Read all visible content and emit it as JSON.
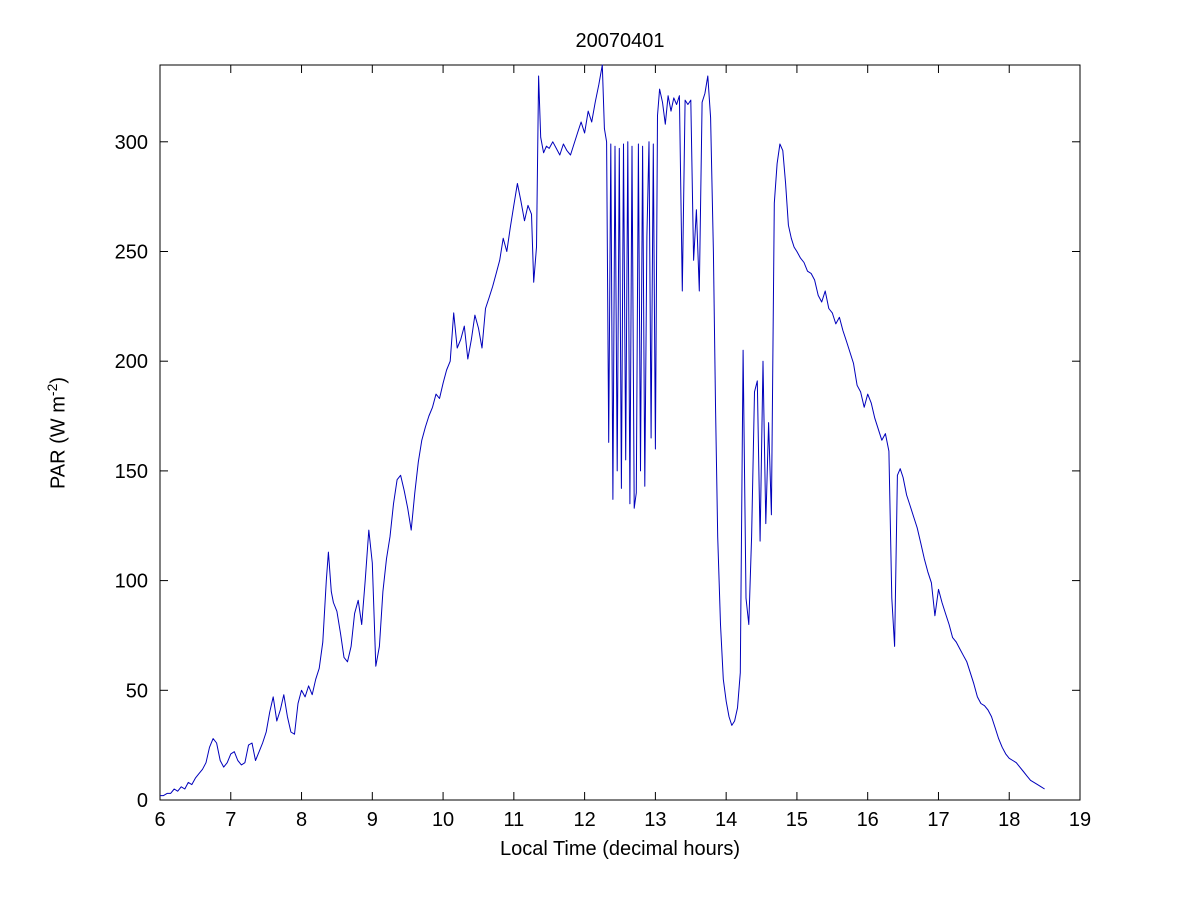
{
  "chart_data": {
    "type": "line",
    "title": "20070401",
    "xlabel": "Local Time (decimal hours)",
    "ylabel_prefix": "PAR (W m",
    "ylabel_sup": "-2",
    "ylabel_suffix": ")",
    "xlim": [
      6,
      19
    ],
    "ylim": [
      0,
      335
    ],
    "xticks": [
      6,
      7,
      8,
      9,
      10,
      11,
      12,
      13,
      14,
      15,
      16,
      17,
      18,
      19
    ],
    "yticks": [
      0,
      50,
      100,
      150,
      200,
      250,
      300
    ],
    "line_color": "#0000bb",
    "axis_color": "#000000",
    "background_color": "#ffffff",
    "legend": "none",
    "grid": false,
    "points": [
      [
        6.0,
        2
      ],
      [
        6.05,
        2
      ],
      [
        6.1,
        3
      ],
      [
        6.15,
        3
      ],
      [
        6.2,
        5
      ],
      [
        6.25,
        4
      ],
      [
        6.3,
        6
      ],
      [
        6.35,
        5
      ],
      [
        6.4,
        8
      ],
      [
        6.45,
        7
      ],
      [
        6.5,
        10
      ],
      [
        6.55,
        12
      ],
      [
        6.6,
        14
      ],
      [
        6.65,
        17
      ],
      [
        6.7,
        24
      ],
      [
        6.75,
        28
      ],
      [
        6.8,
        26
      ],
      [
        6.85,
        18
      ],
      [
        6.9,
        15
      ],
      [
        6.95,
        17
      ],
      [
        7.0,
        21
      ],
      [
        7.05,
        22
      ],
      [
        7.1,
        18
      ],
      [
        7.15,
        16
      ],
      [
        7.2,
        17
      ],
      [
        7.25,
        25
      ],
      [
        7.3,
        26
      ],
      [
        7.35,
        18
      ],
      [
        7.4,
        22
      ],
      [
        7.45,
        26
      ],
      [
        7.5,
        31
      ],
      [
        7.55,
        40
      ],
      [
        7.6,
        47
      ],
      [
        7.65,
        36
      ],
      [
        7.7,
        41
      ],
      [
        7.75,
        48
      ],
      [
        7.8,
        38
      ],
      [
        7.85,
        31
      ],
      [
        7.9,
        30
      ],
      [
        7.95,
        44
      ],
      [
        8.0,
        50
      ],
      [
        8.05,
        47
      ],
      [
        8.1,
        52
      ],
      [
        8.15,
        48
      ],
      [
        8.2,
        55
      ],
      [
        8.25,
        60
      ],
      [
        8.3,
        72
      ],
      [
        8.35,
        100
      ],
      [
        8.38,
        113
      ],
      [
        8.42,
        95
      ],
      [
        8.45,
        90
      ],
      [
        8.5,
        86
      ],
      [
        8.55,
        76
      ],
      [
        8.6,
        65
      ],
      [
        8.65,
        63
      ],
      [
        8.7,
        70
      ],
      [
        8.75,
        85
      ],
      [
        8.8,
        91
      ],
      [
        8.85,
        80
      ],
      [
        8.9,
        100
      ],
      [
        8.95,
        123
      ],
      [
        9.0,
        108
      ],
      [
        9.05,
        61
      ],
      [
        9.1,
        70
      ],
      [
        9.15,
        95
      ],
      [
        9.2,
        110
      ],
      [
        9.25,
        120
      ],
      [
        9.3,
        135
      ],
      [
        9.35,
        146
      ],
      [
        9.4,
        148
      ],
      [
        9.45,
        141
      ],
      [
        9.5,
        133
      ],
      [
        9.55,
        123
      ],
      [
        9.6,
        140
      ],
      [
        9.65,
        154
      ],
      [
        9.7,
        164
      ],
      [
        9.75,
        170
      ],
      [
        9.8,
        175
      ],
      [
        9.85,
        179
      ],
      [
        9.9,
        185
      ],
      [
        9.95,
        183
      ],
      [
        10.0,
        190
      ],
      [
        10.05,
        196
      ],
      [
        10.1,
        200
      ],
      [
        10.15,
        222
      ],
      [
        10.2,
        206
      ],
      [
        10.25,
        210
      ],
      [
        10.3,
        216
      ],
      [
        10.35,
        201
      ],
      [
        10.4,
        210
      ],
      [
        10.45,
        221
      ],
      [
        10.5,
        215
      ],
      [
        10.55,
        206
      ],
      [
        10.6,
        224
      ],
      [
        10.65,
        229
      ],
      [
        10.7,
        234
      ],
      [
        10.75,
        240
      ],
      [
        10.8,
        246
      ],
      [
        10.85,
        256
      ],
      [
        10.9,
        250
      ],
      [
        10.95,
        261
      ],
      [
        11.0,
        271
      ],
      [
        11.05,
        281
      ],
      [
        11.1,
        273
      ],
      [
        11.15,
        264
      ],
      [
        11.2,
        271
      ],
      [
        11.25,
        267
      ],
      [
        11.28,
        236
      ],
      [
        11.32,
        252
      ],
      [
        11.35,
        330
      ],
      [
        11.38,
        302
      ],
      [
        11.42,
        295
      ],
      [
        11.46,
        298
      ],
      [
        11.5,
        297
      ],
      [
        11.55,
        300
      ],
      [
        11.6,
        297
      ],
      [
        11.65,
        294
      ],
      [
        11.7,
        299
      ],
      [
        11.75,
        296
      ],
      [
        11.8,
        294
      ],
      [
        11.85,
        299
      ],
      [
        11.9,
        304
      ],
      [
        11.95,
        309
      ],
      [
        12.0,
        304
      ],
      [
        12.05,
        314
      ],
      [
        12.1,
        309
      ],
      [
        12.15,
        318
      ],
      [
        12.2,
        326
      ],
      [
        12.25,
        335
      ],
      [
        12.28,
        306
      ],
      [
        12.31,
        300
      ],
      [
        12.34,
        163
      ],
      [
        12.37,
        299
      ],
      [
        12.4,
        137
      ],
      [
        12.43,
        298
      ],
      [
        12.46,
        150
      ],
      [
        12.49,
        297
      ],
      [
        12.52,
        142
      ],
      [
        12.55,
        299
      ],
      [
        12.58,
        155
      ],
      [
        12.61,
        300
      ],
      [
        12.64,
        135
      ],
      [
        12.67,
        298
      ],
      [
        12.7,
        133
      ],
      [
        12.73,
        140
      ],
      [
        12.76,
        299
      ],
      [
        12.79,
        150
      ],
      [
        12.82,
        298
      ],
      [
        12.85,
        143
      ],
      [
        12.88,
        257
      ],
      [
        12.91,
        300
      ],
      [
        12.94,
        165
      ],
      [
        12.97,
        299
      ],
      [
        13.0,
        160
      ],
      [
        13.03,
        312
      ],
      [
        13.06,
        324
      ],
      [
        13.1,
        318
      ],
      [
        13.14,
        308
      ],
      [
        13.18,
        321
      ],
      [
        13.22,
        314
      ],
      [
        13.26,
        320
      ],
      [
        13.3,
        317
      ],
      [
        13.34,
        321
      ],
      [
        13.38,
        232
      ],
      [
        13.42,
        319
      ],
      [
        13.46,
        317
      ],
      [
        13.5,
        319
      ],
      [
        13.54,
        246
      ],
      [
        13.58,
        269
      ],
      [
        13.62,
        232
      ],
      [
        13.66,
        318
      ],
      [
        13.7,
        322
      ],
      [
        13.74,
        330
      ],
      [
        13.78,
        311
      ],
      [
        13.82,
        250
      ],
      [
        13.85,
        180
      ],
      [
        13.88,
        120
      ],
      [
        13.92,
        80
      ],
      [
        13.96,
        55
      ],
      [
        14.0,
        45
      ],
      [
        14.04,
        38
      ],
      [
        14.08,
        34
      ],
      [
        14.12,
        36
      ],
      [
        14.16,
        42
      ],
      [
        14.2,
        58
      ],
      [
        14.24,
        205
      ],
      [
        14.28,
        92
      ],
      [
        14.32,
        80
      ],
      [
        14.36,
        120
      ],
      [
        14.4,
        186
      ],
      [
        14.44,
        191
      ],
      [
        14.48,
        118
      ],
      [
        14.52,
        200
      ],
      [
        14.56,
        126
      ],
      [
        14.6,
        172
      ],
      [
        14.64,
        130
      ],
      [
        14.68,
        272
      ],
      [
        14.72,
        290
      ],
      [
        14.76,
        299
      ],
      [
        14.8,
        296
      ],
      [
        14.84,
        281
      ],
      [
        14.88,
        262
      ],
      [
        14.92,
        256
      ],
      [
        14.96,
        252
      ],
      [
        15.0,
        250
      ],
      [
        15.05,
        247
      ],
      [
        15.1,
        245
      ],
      [
        15.15,
        241
      ],
      [
        15.2,
        240
      ],
      [
        15.25,
        237
      ],
      [
        15.3,
        230
      ],
      [
        15.35,
        227
      ],
      [
        15.4,
        232
      ],
      [
        15.45,
        224
      ],
      [
        15.5,
        222
      ],
      [
        15.55,
        217
      ],
      [
        15.6,
        220
      ],
      [
        15.65,
        214
      ],
      [
        15.7,
        209
      ],
      [
        15.75,
        204
      ],
      [
        15.8,
        199
      ],
      [
        15.85,
        189
      ],
      [
        15.9,
        186
      ],
      [
        15.95,
        179
      ],
      [
        16.0,
        185
      ],
      [
        16.05,
        181
      ],
      [
        16.1,
        174
      ],
      [
        16.15,
        169
      ],
      [
        16.2,
        164
      ],
      [
        16.25,
        167
      ],
      [
        16.3,
        159
      ],
      [
        16.34,
        92
      ],
      [
        16.38,
        70
      ],
      [
        16.42,
        148
      ],
      [
        16.46,
        151
      ],
      [
        16.5,
        147
      ],
      [
        16.55,
        139
      ],
      [
        16.6,
        134
      ],
      [
        16.65,
        129
      ],
      [
        16.7,
        124
      ],
      [
        16.75,
        117
      ],
      [
        16.8,
        110
      ],
      [
        16.85,
        104
      ],
      [
        16.9,
        99
      ],
      [
        16.95,
        84
      ],
      [
        17.0,
        96
      ],
      [
        17.05,
        90
      ],
      [
        17.1,
        85
      ],
      [
        17.15,
        80
      ],
      [
        17.2,
        74
      ],
      [
        17.25,
        72
      ],
      [
        17.3,
        69
      ],
      [
        17.35,
        66
      ],
      [
        17.4,
        63
      ],
      [
        17.45,
        58
      ],
      [
        17.5,
        53
      ],
      [
        17.55,
        47
      ],
      [
        17.6,
        44
      ],
      [
        17.65,
        43
      ],
      [
        17.7,
        41
      ],
      [
        17.75,
        38
      ],
      [
        17.8,
        33
      ],
      [
        17.85,
        28
      ],
      [
        17.9,
        24
      ],
      [
        17.95,
        21
      ],
      [
        18.0,
        19
      ],
      [
        18.05,
        18
      ],
      [
        18.1,
        17
      ],
      [
        18.15,
        15
      ],
      [
        18.2,
        13
      ],
      [
        18.25,
        11
      ],
      [
        18.3,
        9
      ],
      [
        18.35,
        8
      ],
      [
        18.4,
        7
      ],
      [
        18.45,
        6
      ],
      [
        18.5,
        5
      ]
    ]
  }
}
